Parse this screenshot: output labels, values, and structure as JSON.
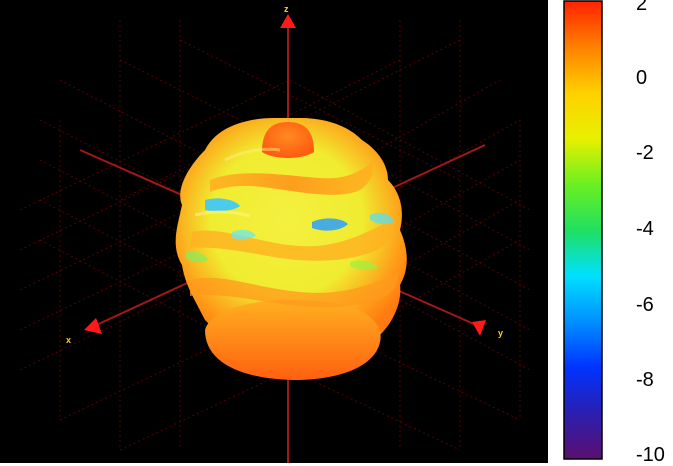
{
  "chart_data": {
    "type": "heatmap",
    "title": "",
    "description_kind": "3d-radiation-pattern",
    "axes": {
      "x": "x",
      "y": "y",
      "z": "z"
    },
    "colorbar": {
      "min": -10,
      "max": 2,
      "ticks": [
        2,
        0,
        -2,
        -4,
        -6,
        -8,
        -10
      ],
      "tick_labels": [
        "2",
        "0",
        "-2",
        "-4",
        "-6",
        "-8",
        "-10"
      ],
      "colormap": [
        "#5b0f6e",
        "#2a1fb0",
        "#0033ff",
        "#0090ff",
        "#00e0ff",
        "#20e060",
        "#6cf020",
        "#e8f000",
        "#ffd000",
        "#ff8000",
        "#ff2200"
      ]
    },
    "background": "#000000",
    "grid": true
  }
}
